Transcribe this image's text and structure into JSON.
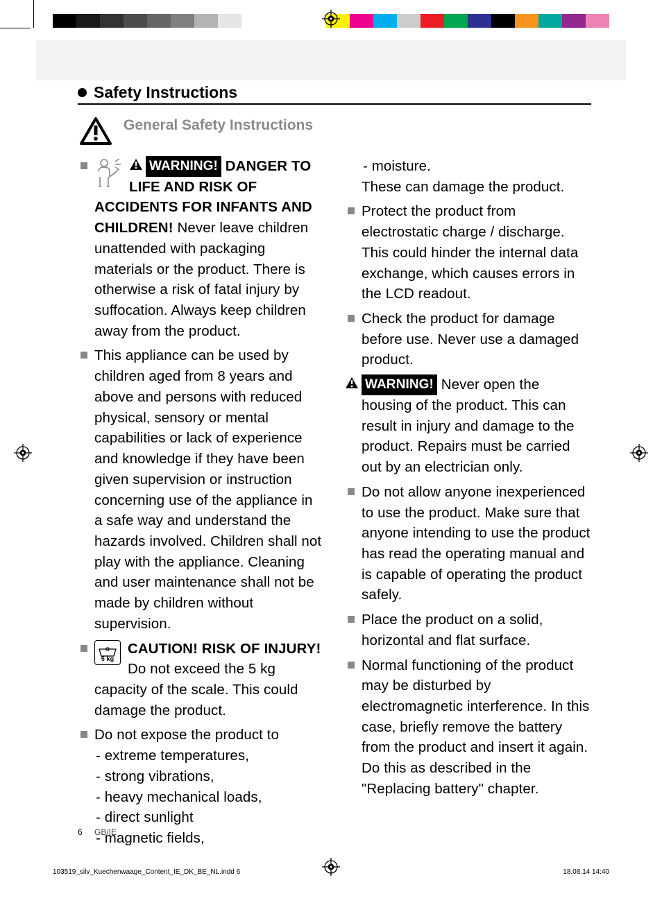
{
  "colorbar_left": [
    "#000000",
    "#1a1a1a",
    "#333333",
    "#4d4d4d",
    "#666666",
    "#808080",
    "#b3b3b3",
    "#e6e6e6",
    "#ffffff"
  ],
  "colorbar_right": [
    "#fff200",
    "#ec008c",
    "#00aeef",
    "#cccccc",
    "#ed1c24",
    "#00a651",
    "#2e3192",
    "#000000",
    "#f7941d",
    "#00a99d",
    "#92278f",
    "#ee82b4"
  ],
  "section_title": "Safety Instructions",
  "subheading": "General Safety Instructions",
  "warning_label": "WARNING!",
  "caution_heading": "CAUTION! RISK OF INJURY!",
  "items": {
    "b1_heading": "DANGER TO LIFE AND RISK OF ACCIDENTS FOR INFANTS AND CHILDREN!",
    "b1_body": "Never leave children unattended with packaging materials or the product. There is otherwise a risk of fatal injury by suffocation. Always keep children away from the product.",
    "b2": "This appliance can be used by children aged from 8 years and above and persons with reduced physical, sensory or mental capabilities or lack of experience and knowledge if they have been given supervision or instruction concerning use of the appliance in a safe way and understand the hazards involved. Children shall not play with the appliance. Cleaning and user maintenance shall not be made by children without supervision.",
    "b3_body": "Do not exceed the 5 kg capacity of the scale. This could damage the product.",
    "b4_intro": "Do not expose the product to",
    "b4_sub": [
      "- extreme temperatures,",
      "- strong vibrations,",
      "- heavy mechanical loads,",
      "- direct sunlight",
      "- magnetic fields,",
      "- moisture."
    ],
    "b4_outro": "These can damage the product.",
    "b5": "Protect the product from electrostatic charge / discharge. This could hinder the internal data exchange, which causes errors in the LCD readout.",
    "b6": "Check the product for damage before use. Never use a damaged product.",
    "b7": "Never open the housing of the product. This can result in injury and damage to the product. Repairs must be carried out by an electrician only.",
    "b8": "Do not allow anyone inexperienced to use the product. Make sure that anyone intending to use the product has read the operating manual and is capable of operating the product safely.",
    "b9": "Place the product on a solid, horizontal and flat surface.",
    "b10": "Normal functioning of the product may be disturbed by electromagnetic interference. In this case, briefly remove the battery from the product and insert it again. Do this as described in the \"Replacing battery\" chapter."
  },
  "weight_icon_label": "5 kg",
  "page_number": "6",
  "region_code": "GB/IE",
  "slug_file": "103519_silv_Kuechenwaage_Content_IE_DK_BE_NL.indd   6",
  "slug_date": "18.08.14   14:40"
}
